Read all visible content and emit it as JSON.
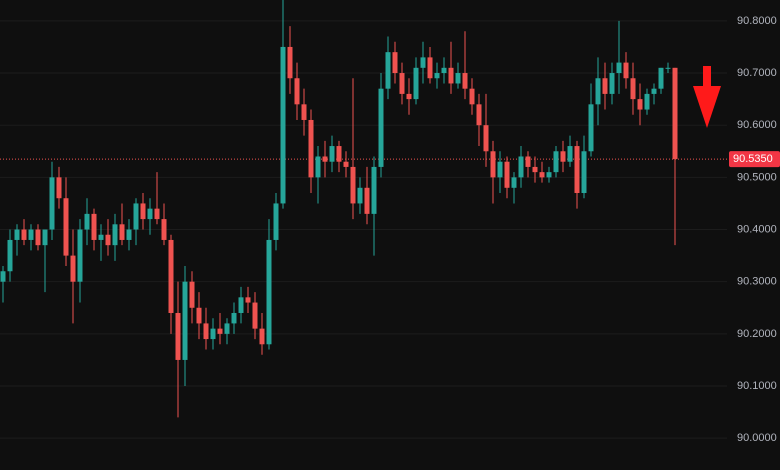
{
  "chart_data": {
    "type": "candlestick",
    "up_color": "#26a69a",
    "down_color": "#ef5350",
    "grid": true,
    "ylim": [
      89.939,
      90.84
    ],
    "yticks": [
      {
        "value": 90.0,
        "label": "90.0000"
      },
      {
        "value": 90.1,
        "label": "90.1000"
      },
      {
        "value": 90.2,
        "label": "90.2000"
      },
      {
        "value": 90.3,
        "label": "90.3000"
      },
      {
        "value": 90.4,
        "label": "90.4000"
      },
      {
        "value": 90.5,
        "label": "90.5000"
      },
      {
        "value": 90.6,
        "label": "90.6000"
      },
      {
        "value": 90.7,
        "label": "90.7000"
      },
      {
        "value": 90.8,
        "label": "90.8000"
      }
    ],
    "last_price": {
      "value": 90.535,
      "label": "90.5350"
    },
    "open": [
      90.3,
      90.32,
      90.38,
      90.4,
      90.38,
      90.4,
      90.37,
      90.4,
      90.5,
      90.46,
      90.35,
      90.3,
      90.4,
      90.43,
      90.38,
      90.39,
      90.37,
      90.41,
      90.38,
      90.4,
      90.45,
      90.42,
      90.44,
      90.42,
      90.38,
      90.24,
      90.15,
      90.3,
      90.25,
      90.22,
      90.19,
      90.21,
      90.2,
      90.22,
      90.24,
      90.27,
      90.26,
      90.21,
      90.18,
      90.38,
      90.45,
      90.75,
      90.69,
      90.64,
      90.61,
      90.5,
      90.54,
      90.53,
      90.56,
      90.53,
      90.52,
      90.45,
      90.48,
      90.43,
      90.52,
      90.67,
      90.74,
      90.7,
      90.66,
      90.65,
      90.71,
      90.73,
      90.69,
      90.7,
      90.71,
      90.68,
      90.7,
      90.67,
      90.64,
      90.6,
      90.55,
      90.5,
      90.53,
      90.48,
      90.5,
      90.54,
      90.52,
      90.51,
      90.5,
      90.51,
      90.55,
      90.53,
      90.56,
      90.47,
      90.55,
      90.64,
      90.69,
      90.66,
      90.7,
      90.72,
      90.69,
      90.65,
      90.63,
      90.66,
      90.67,
      90.71,
      90.71
    ],
    "high": [
      90.33,
      90.4,
      90.41,
      90.42,
      90.41,
      90.41,
      90.4,
      90.53,
      90.52,
      90.5,
      90.4,
      90.42,
      90.46,
      90.44,
      90.41,
      90.42,
      90.43,
      90.45,
      90.42,
      90.46,
      90.47,
      90.46,
      90.51,
      90.45,
      90.39,
      90.3,
      90.33,
      90.32,
      90.28,
      90.25,
      90.23,
      90.24,
      90.23,
      90.26,
      90.29,
      90.29,
      90.28,
      90.24,
      90.42,
      90.47,
      90.84,
      90.79,
      90.72,
      90.67,
      90.63,
      90.56,
      90.57,
      90.58,
      90.57,
      90.55,
      90.69,
      90.5,
      90.52,
      90.54,
      90.7,
      90.77,
      90.76,
      90.72,
      90.69,
      90.73,
      90.76,
      90.75,
      90.72,
      90.73,
      90.76,
      90.72,
      90.78,
      90.69,
      90.66,
      90.66,
      90.57,
      90.55,
      90.54,
      90.51,
      90.56,
      90.55,
      90.54,
      90.53,
      90.52,
      90.56,
      90.57,
      90.58,
      90.57,
      90.58,
      90.68,
      90.73,
      90.72,
      90.72,
      90.8,
      90.74,
      90.72,
      90.68,
      90.67,
      90.68,
      90.71,
      90.72,
      90.71
    ],
    "low": [
      90.26,
      90.3,
      90.35,
      90.37,
      90.36,
      90.36,
      90.28,
      90.38,
      90.44,
      90.33,
      90.22,
      90.26,
      90.37,
      90.36,
      90.34,
      90.35,
      90.34,
      90.37,
      90.36,
      90.37,
      90.4,
      90.39,
      90.41,
      90.37,
      90.2,
      90.04,
      90.1,
      90.22,
      90.19,
      90.17,
      90.17,
      90.18,
      90.18,
      90.2,
      90.22,
      90.24,
      90.19,
      90.16,
      90.17,
      90.36,
      90.44,
      90.66,
      90.61,
      90.58,
      90.47,
      90.45,
      90.5,
      90.51,
      90.51,
      90.5,
      90.42,
      90.43,
      90.41,
      90.35,
      90.5,
      90.65,
      90.68,
      90.64,
      90.62,
      90.64,
      90.68,
      90.68,
      90.67,
      90.68,
      90.66,
      90.67,
      90.65,
      90.62,
      90.56,
      90.52,
      90.45,
      90.47,
      90.46,
      90.45,
      90.48,
      90.5,
      90.49,
      90.49,
      90.49,
      90.5,
      90.51,
      90.52,
      90.44,
      90.46,
      90.54,
      90.6,
      90.63,
      90.64,
      90.66,
      90.67,
      90.62,
      90.6,
      90.62,
      90.64,
      90.66,
      90.7,
      90.37
    ],
    "close": [
      90.32,
      90.38,
      90.4,
      90.38,
      90.4,
      90.37,
      90.4,
      90.5,
      90.46,
      90.35,
      90.3,
      90.4,
      90.43,
      90.38,
      90.39,
      90.37,
      90.41,
      90.38,
      90.4,
      90.45,
      90.42,
      90.44,
      90.42,
      90.38,
      90.24,
      90.15,
      90.3,
      90.25,
      90.22,
      90.19,
      90.21,
      90.2,
      90.22,
      90.24,
      90.27,
      90.26,
      90.21,
      90.18,
      90.38,
      90.45,
      90.75,
      90.69,
      90.64,
      90.61,
      90.5,
      90.54,
      90.53,
      90.56,
      90.53,
      90.52,
      90.45,
      90.48,
      90.43,
      90.52,
      90.67,
      90.74,
      90.7,
      90.66,
      90.65,
      90.71,
      90.73,
      90.69,
      90.7,
      90.71,
      90.68,
      90.7,
      90.67,
      90.64,
      90.6,
      90.55,
      90.5,
      90.53,
      90.48,
      90.5,
      90.54,
      90.52,
      90.51,
      90.5,
      90.51,
      90.55,
      90.53,
      90.56,
      90.47,
      90.55,
      90.64,
      90.69,
      90.66,
      90.7,
      90.72,
      90.69,
      90.65,
      90.63,
      90.66,
      90.67,
      90.71,
      90.71,
      90.535
    ]
  }
}
